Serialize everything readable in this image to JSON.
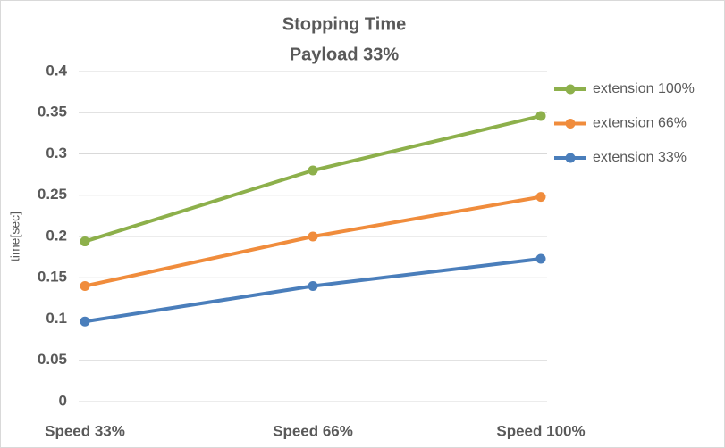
{
  "chart_data": {
    "type": "line",
    "title": "Stopping Time",
    "subtitle": "Payload 33%",
    "y_label": "time[sec]",
    "categories": [
      "Speed 33%",
      "Speed 66%",
      "Speed 100%"
    ],
    "series": [
      {
        "name": "extension 100%",
        "color": "#8db04b",
        "values": [
          0.194,
          0.28,
          0.346
        ]
      },
      {
        "name": "extension 66%",
        "color": "#f08c3c",
        "values": [
          0.14,
          0.2,
          0.248
        ]
      },
      {
        "name": "extension 33%",
        "color": "#4a7ebb",
        "values": [
          0.097,
          0.14,
          0.173
        ]
      }
    ],
    "ylim": [
      0,
      0.4
    ],
    "yticks": [
      0,
      0.05,
      0.1,
      0.15,
      0.2,
      0.25,
      0.3,
      0.35,
      0.4
    ],
    "grid": true,
    "legend": "right"
  }
}
